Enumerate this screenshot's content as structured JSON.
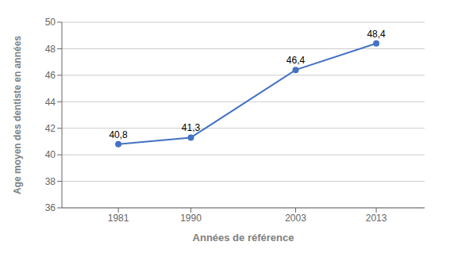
{
  "chart_data": {
    "type": "line",
    "x": [
      1981,
      1990,
      2003,
      2013
    ],
    "values": [
      40.8,
      41.3,
      46.4,
      48.4
    ],
    "value_labels": [
      "40,8",
      "41,3",
      "46,4",
      "48,4"
    ],
    "data_labels": true,
    "xlabel": "Années de référence",
    "ylabel": "Age moyen des dentiste en années",
    "xlim": [
      1974,
      2019
    ],
    "ylim": [
      36,
      50
    ],
    "xticks": [
      1981,
      1990,
      2003,
      2013
    ],
    "yticks": [
      36,
      38,
      40,
      42,
      44,
      46,
      48,
      50
    ],
    "color": "#4472C4",
    "marker": "circle",
    "grid": "y"
  }
}
